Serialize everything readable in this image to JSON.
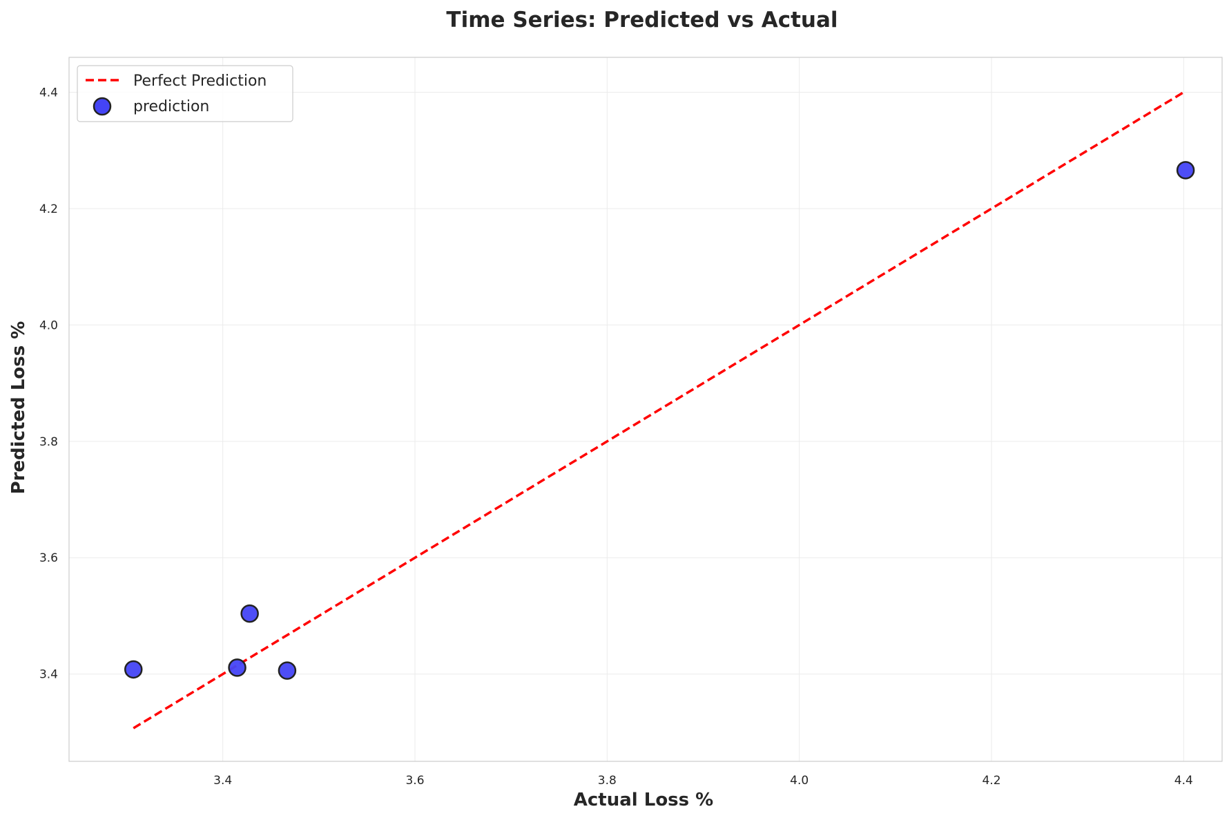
{
  "chart_data": {
    "type": "scatter",
    "title": "Time Series: Predicted vs Actual",
    "xlabel": "Actual Loss %",
    "ylabel": "Predicted Loss %",
    "xlim": [
      3.24,
      4.44
    ],
    "ylim": [
      3.25,
      4.46
    ],
    "xticks": [
      3.4,
      3.6,
      3.8,
      4.0,
      4.2,
      4.4
    ],
    "yticks": [
      3.4,
      3.6,
      3.8,
      4.0,
      4.2,
      4.4
    ],
    "xtick_labels": [
      "3.4",
      "3.6",
      "3.8",
      "4.0",
      "4.2",
      "4.4"
    ],
    "ytick_labels": [
      "3.4",
      "3.6",
      "3.8",
      "4.0",
      "4.2",
      "4.4"
    ],
    "grid": true,
    "legend_position": "top-left",
    "series": [
      {
        "name": "Perfect Prediction",
        "kind": "line",
        "style": "dashed",
        "color": "#ff0000",
        "x": [
          3.307,
          4.402
        ],
        "y": [
          3.307,
          4.402
        ]
      },
      {
        "name": "prediction",
        "kind": "scatter",
        "color": "#4444f5",
        "edge_color": "#222222",
        "x": [
          3.307,
          3.415,
          3.428,
          3.467,
          4.402
        ],
        "y": [
          3.408,
          3.411,
          3.504,
          3.406,
          4.266
        ]
      }
    ]
  }
}
